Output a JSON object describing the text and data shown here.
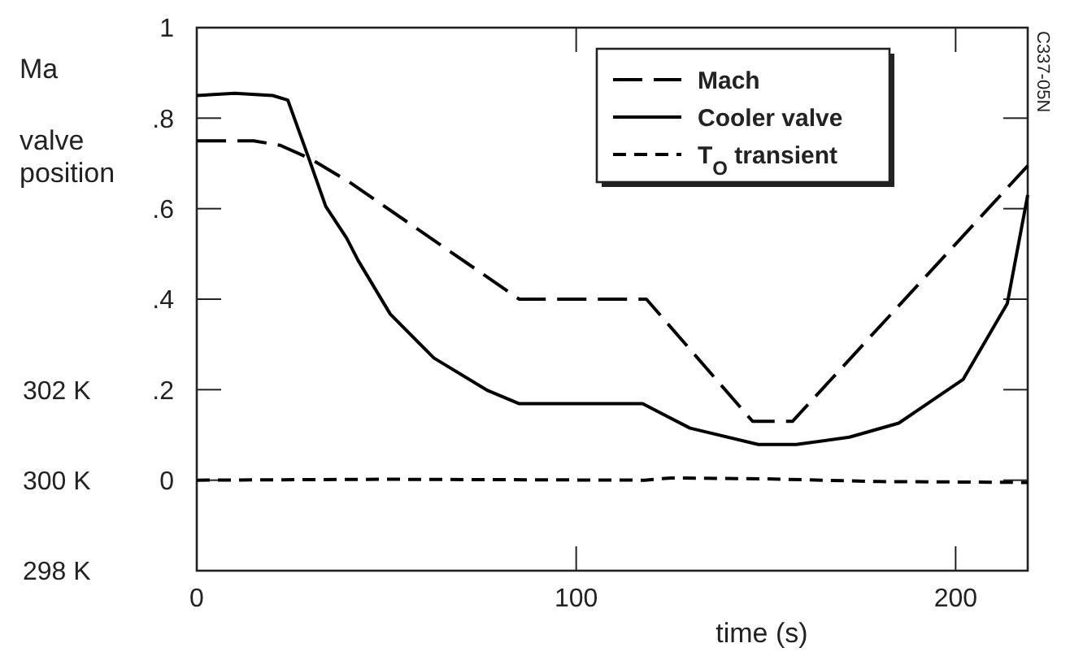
{
  "chart_data": {
    "type": "line",
    "xlabel": "time (s)",
    "ylabel": "Ma\nvalve\nposition",
    "xlim": [
      0,
      219
    ],
    "xticks": [
      0,
      100,
      200
    ],
    "ylim": [
      -0.2,
      1
    ],
    "yticks": [
      {
        "value": 0,
        "label": "0"
      },
      {
        "value": 0.2,
        "label": ".2"
      },
      {
        "value": 0.4,
        "label": ".4"
      },
      {
        "value": 0.6,
        "label": ".6"
      },
      {
        "value": 0.8,
        "label": ".8"
      },
      {
        "value": 1,
        "label": "1"
      }
    ],
    "y2lim": [
      298,
      310
    ],
    "y2ticks": [
      {
        "value": 298,
        "label": "298 K"
      },
      {
        "value": 300,
        "label": "300 K"
      },
      {
        "value": 302,
        "label": "302 K"
      }
    ],
    "legend": "top right",
    "grid": false,
    "marker": "none",
    "annotations": [
      "C337-05N"
    ],
    "series": [
      {
        "name": "Mach",
        "color": "#000000",
        "line_style": "longdash",
        "x": [
          0,
          15,
          22,
          30,
          40,
          85,
          118.5,
          146.5,
          157,
          219
        ],
        "values": [
          0.75,
          0.75,
          0.74,
          0.71,
          0.66,
          0.4,
          0.4,
          0.13,
          0.13,
          0.695
        ]
      },
      {
        "name": "Cooler valve",
        "color": "#000000",
        "line_style": "solid",
        "x": [
          0,
          10,
          20,
          24,
          29.5,
          34,
          39.5,
          42.5,
          51,
          62.5,
          76.7,
          85,
          117.5,
          130,
          148,
          158,
          172,
          185,
          202,
          213.6,
          219
        ],
        "values": [
          0.85,
          0.855,
          0.85,
          0.84,
          0.712,
          0.605,
          0.535,
          0.486,
          0.367,
          0.27,
          0.198,
          0.169,
          0.169,
          0.115,
          0.079,
          0.079,
          0.095,
          0.126,
          0.223,
          0.39,
          0.63
        ]
      },
      {
        "name": "T$_{O}$ transient",
        "color": "#000000",
        "line_style": "dashed",
        "axis": "y2",
        "x": [
          0,
          50,
          118,
          125,
          150,
          180,
          219
        ],
        "values": [
          300,
          300.02,
          300,
          300.05,
          300.03,
          299.97,
          299.95
        ]
      }
    ]
  }
}
